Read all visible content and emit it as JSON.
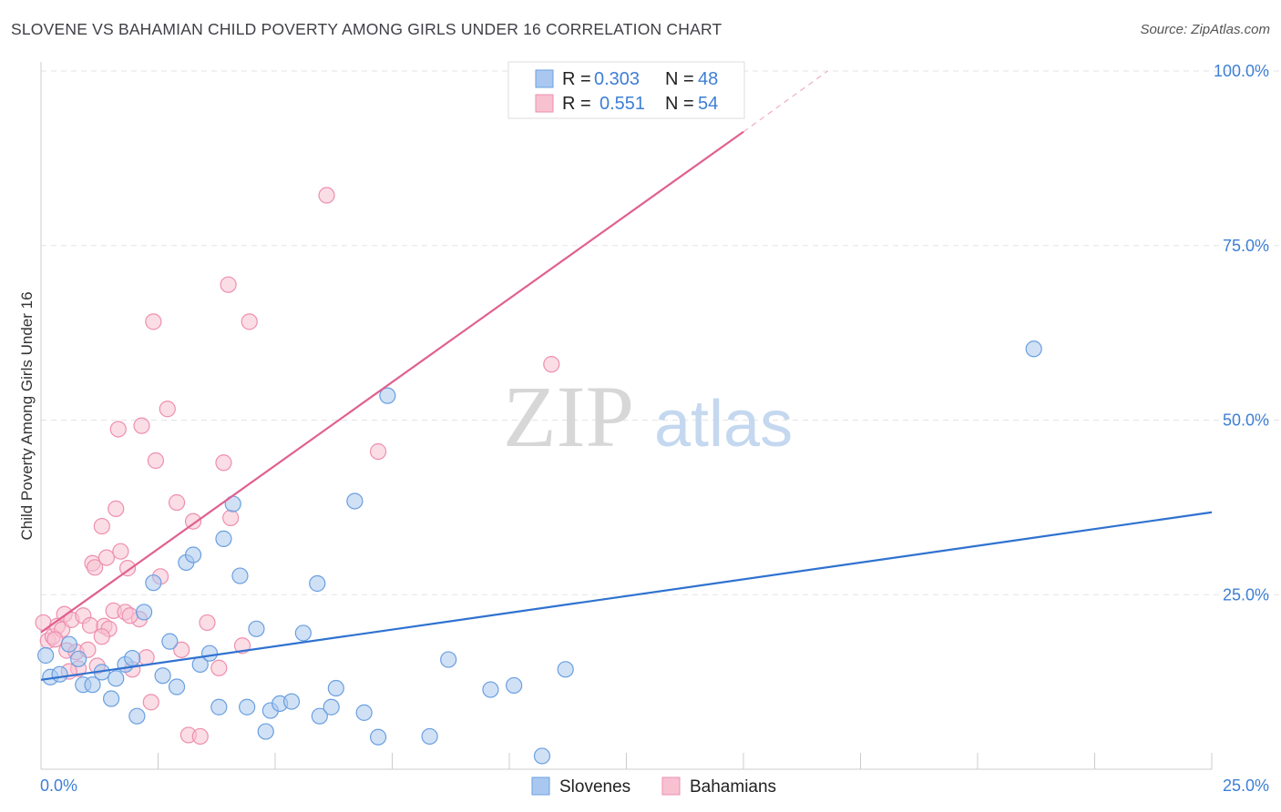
{
  "title": "SLOVENE VS BAHAMIAN CHILD POVERTY AMONG GIRLS UNDER 16 CORRELATION CHART",
  "source": "Source: ZipAtlas.com",
  "watermark": {
    "zip": "ZIP",
    "atlas": "atlas"
  },
  "colors": {
    "blue_fill": "#aac8ef",
    "blue_stroke": "#6a9fe0",
    "blue_line": "#2f72d0",
    "pink_fill": "#f7c1d2",
    "pink_stroke": "#ee8fae",
    "pink_line": "#e06090",
    "tick": "#3d7fd6",
    "grid": "#e3e3e3"
  },
  "legend": {
    "rows": [
      {
        "r_label": "R = ",
        "r_value": "0.303",
        "n_label": "N = ",
        "n_value": "48",
        "color": "blue"
      },
      {
        "r_label": "R = ",
        "r_value": "0.551",
        "n_label": "N = ",
        "n_value": "54",
        "color": "pink"
      }
    ]
  },
  "bottom_legend": [
    {
      "label": "Slovenes",
      "color": "blue"
    },
    {
      "label": "Bahamians",
      "color": "pink"
    }
  ],
  "chart_data": {
    "type": "scatter",
    "title": "SLOVENE VS BAHAMIAN CHILD POVERTY AMONG GIRLS UNDER 16 CORRELATION CHART",
    "xlabel": "",
    "ylabel": "Child Poverty Among Girls Under 16",
    "xlim": [
      0,
      25
    ],
    "ylim": [
      0,
      100
    ],
    "x_ticks": [
      "0.0%",
      "25.0%"
    ],
    "y_ticks": [
      {
        "value": 25,
        "label": "25.0%"
      },
      {
        "value": 50,
        "label": "50.0%"
      },
      {
        "value": 75,
        "label": "75.0%"
      },
      {
        "value": 100,
        "label": "100.0%"
      }
    ],
    "grid": true,
    "legend_position": "top-center",
    "series": [
      {
        "name": "Slovenes",
        "color": "blue",
        "trend": {
          "x0": 0,
          "y0": 12.8,
          "x1": 25,
          "y1": 36.8
        },
        "points": [
          [
            0.1,
            16.3
          ],
          [
            0.2,
            13.2
          ],
          [
            0.4,
            13.6
          ],
          [
            0.6,
            17.9
          ],
          [
            0.8,
            15.8
          ],
          [
            0.9,
            12.1
          ],
          [
            1.1,
            12.1
          ],
          [
            1.3,
            13.9
          ],
          [
            1.5,
            10.1
          ],
          [
            1.6,
            13.0
          ],
          [
            1.8,
            15.0
          ],
          [
            1.95,
            15.9
          ],
          [
            2.05,
            7.6
          ],
          [
            2.2,
            22.5
          ],
          [
            2.4,
            26.7
          ],
          [
            2.6,
            13.4
          ],
          [
            2.75,
            18.3
          ],
          [
            2.9,
            11.8
          ],
          [
            3.1,
            29.6
          ],
          [
            3.25,
            30.7
          ],
          [
            3.4,
            15.0
          ],
          [
            3.6,
            16.6
          ],
          [
            3.8,
            8.9
          ],
          [
            3.9,
            33.0
          ],
          [
            4.1,
            38.0
          ],
          [
            4.25,
            27.7
          ],
          [
            4.4,
            8.9
          ],
          [
            4.6,
            20.1
          ],
          [
            4.8,
            5.4
          ],
          [
            4.9,
            8.4
          ],
          [
            5.1,
            9.4
          ],
          [
            5.35,
            9.7
          ],
          [
            5.6,
            19.5
          ],
          [
            5.9,
            26.6
          ],
          [
            5.95,
            7.6
          ],
          [
            6.2,
            8.9
          ],
          [
            6.3,
            11.6
          ],
          [
            6.7,
            38.4
          ],
          [
            6.9,
            8.1
          ],
          [
            7.2,
            4.6
          ],
          [
            7.4,
            53.5
          ],
          [
            8.3,
            4.7
          ],
          [
            8.7,
            15.7
          ],
          [
            9.6,
            11.4
          ],
          [
            10.1,
            12.0
          ],
          [
            10.7,
            1.9
          ],
          [
            11.2,
            14.3
          ],
          [
            21.2,
            60.2
          ]
        ]
      },
      {
        "name": "Bahamians",
        "color": "pink",
        "trend": {
          "x0": 0,
          "y0": 19.6,
          "x1": 15.0,
          "y1": 91.3
        },
        "trend_dashed": {
          "x0": 15.0,
          "y0": 91.3,
          "x1": 16.8,
          "y1": 100.0
        },
        "points": [
          [
            0.05,
            21.0
          ],
          [
            0.15,
            18.4
          ],
          [
            0.25,
            19.0
          ],
          [
            0.35,
            20.5
          ],
          [
            0.45,
            20.0
          ],
          [
            0.5,
            22.2
          ],
          [
            0.55,
            17.0
          ],
          [
            0.65,
            21.4
          ],
          [
            0.75,
            16.8
          ],
          [
            0.8,
            14.4
          ],
          [
            0.9,
            22.0
          ],
          [
            1.0,
            17.1
          ],
          [
            1.05,
            20.6
          ],
          [
            1.1,
            29.5
          ],
          [
            1.15,
            28.9
          ],
          [
            1.2,
            14.8
          ],
          [
            1.3,
            34.8
          ],
          [
            1.35,
            20.5
          ],
          [
            1.4,
            30.3
          ],
          [
            1.45,
            20.1
          ],
          [
            1.55,
            22.7
          ],
          [
            1.6,
            37.3
          ],
          [
            1.65,
            48.7
          ],
          [
            1.7,
            31.2
          ],
          [
            1.8,
            22.5
          ],
          [
            1.85,
            28.8
          ],
          [
            1.95,
            14.3
          ],
          [
            2.1,
            21.5
          ],
          [
            2.15,
            49.2
          ],
          [
            2.25,
            16.0
          ],
          [
            2.35,
            9.6
          ],
          [
            2.4,
            64.1
          ],
          [
            2.45,
            44.2
          ],
          [
            2.55,
            27.6
          ],
          [
            2.7,
            51.6
          ],
          [
            2.9,
            38.2
          ],
          [
            3.0,
            17.1
          ],
          [
            3.15,
            4.9
          ],
          [
            3.25,
            35.5
          ],
          [
            3.4,
            4.7
          ],
          [
            3.55,
            21.0
          ],
          [
            3.8,
            14.5
          ],
          [
            3.9,
            43.9
          ],
          [
            4.0,
            69.4
          ],
          [
            4.05,
            36.0
          ],
          [
            4.3,
            17.7
          ],
          [
            4.45,
            64.1
          ],
          [
            6.1,
            82.2
          ],
          [
            7.2,
            45.5
          ],
          [
            10.9,
            58.0
          ],
          [
            0.3,
            18.6
          ],
          [
            0.6,
            14.0
          ],
          [
            1.3,
            19.0
          ],
          [
            1.9,
            22.0
          ]
        ]
      }
    ]
  }
}
